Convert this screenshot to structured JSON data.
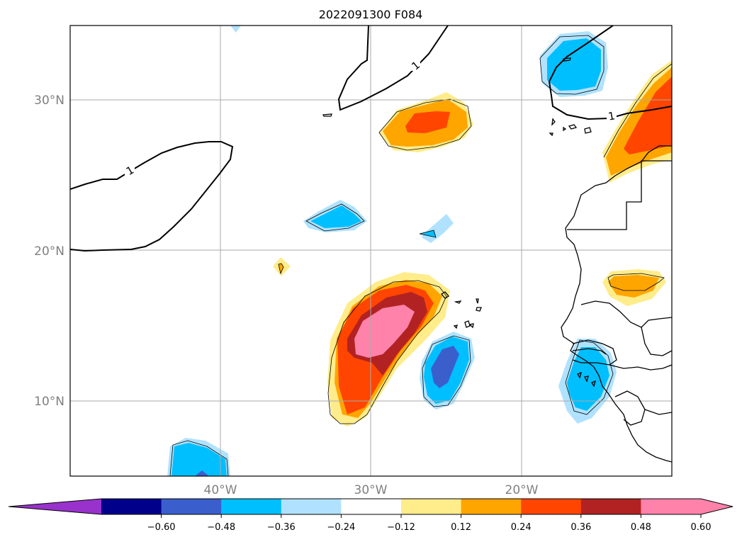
{
  "title": "2022091300 F084",
  "map": {
    "lat_labels": [
      "30°N",
      "20°N",
      "10°N"
    ],
    "lon_labels": [
      "40°W",
      "30°W",
      "20°W"
    ],
    "gridlines": true,
    "contour_label": "1",
    "extent": {
      "lon_min": -50,
      "lon_max": -10,
      "lat_min": 5,
      "lat_max": 35
    }
  },
  "colorbar": {
    "ticks": [
      "−0.60",
      "−0.48",
      "−0.36",
      "−0.24",
      "−0.12",
      "0.12",
      "0.24",
      "0.36",
      "0.48",
      "0.60"
    ],
    "colors": [
      "#9932cc",
      "#00008b",
      "#3a5fcd",
      "#00bfff",
      "#b0e2ff",
      "#ffffff",
      "#ffec8b",
      "#ffa500",
      "#ff4500",
      "#b22222",
      "#ff82ab",
      "#ff82ab"
    ],
    "extend": "both"
  }
}
